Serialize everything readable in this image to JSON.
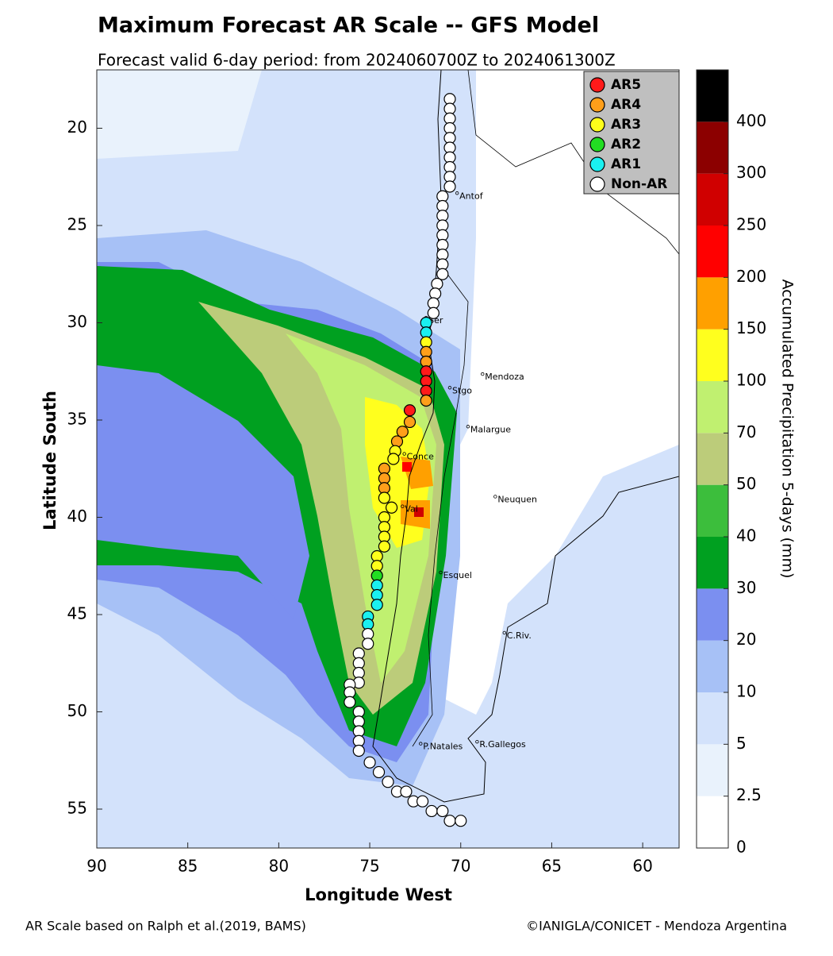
{
  "title": "Maximum Forecast AR Scale -- GFS Model",
  "subtitle": "Forecast valid 6-day period: from 2024060700Z to 2024061300Z",
  "map": {
    "xlabel": "Longitude West",
    "ylabel": "Latitude South",
    "xlim": [
      90,
      58
    ],
    "ylim": [
      17,
      57
    ],
    "xticks": [
      90,
      85,
      80,
      75,
      70,
      65,
      60
    ],
    "yticks": [
      20,
      25,
      30,
      35,
      40,
      45,
      50,
      55
    ],
    "cities": [
      {
        "label": "Antof",
        "lon": 70.2,
        "lat": 23.5
      },
      {
        "label": "Ser",
        "lon": 71.9,
        "lat": 29.9
      },
      {
        "label": "Mendoza",
        "lon": 68.8,
        "lat": 32.8
      },
      {
        "label": "Stgo",
        "lon": 70.6,
        "lat": 33.5
      },
      {
        "label": "Malargue",
        "lon": 69.6,
        "lat": 35.5
      },
      {
        "label": "Conce",
        "lon": 73.1,
        "lat": 36.9
      },
      {
        "label": "Neuquen",
        "lon": 68.1,
        "lat": 39.1
      },
      {
        "label": "Val",
        "lon": 73.2,
        "lat": 39.6
      },
      {
        "label": "Esquel",
        "lon": 71.1,
        "lat": 43.0
      },
      {
        "label": "C.Riv.",
        "lon": 67.6,
        "lat": 46.1
      },
      {
        "label": "P.Natales",
        "lon": 72.2,
        "lat": 51.8
      },
      {
        "label": "R.Gallegos",
        "lon": 69.1,
        "lat": 51.7
      }
    ],
    "legend": [
      {
        "label": "AR5",
        "color": "#ff1a1a"
      },
      {
        "label": "AR4",
        "color": "#ff9f1a"
      },
      {
        "label": "AR3",
        "color": "#ffff1a"
      },
      {
        "label": "AR2",
        "color": "#22dd22"
      },
      {
        "label": "AR1",
        "color": "#1af0f0"
      },
      {
        "label": "Non-AR",
        "color": "#ffffff"
      }
    ],
    "track": [
      {
        "lon": 70.6,
        "lat": 18.5,
        "cat": "Non-AR"
      },
      {
        "lon": 70.6,
        "lat": 19.0,
        "cat": "Non-AR"
      },
      {
        "lon": 70.6,
        "lat": 19.5,
        "cat": "Non-AR"
      },
      {
        "lon": 70.6,
        "lat": 20.0,
        "cat": "Non-AR"
      },
      {
        "lon": 70.6,
        "lat": 20.5,
        "cat": "Non-AR"
      },
      {
        "lon": 70.6,
        "lat": 21.0,
        "cat": "Non-AR"
      },
      {
        "lon": 70.6,
        "lat": 21.5,
        "cat": "Non-AR"
      },
      {
        "lon": 70.6,
        "lat": 22.0,
        "cat": "Non-AR"
      },
      {
        "lon": 70.6,
        "lat": 22.5,
        "cat": "Non-AR"
      },
      {
        "lon": 70.6,
        "lat": 23.0,
        "cat": "Non-AR"
      },
      {
        "lon": 71.0,
        "lat": 23.5,
        "cat": "Non-AR"
      },
      {
        "lon": 71.0,
        "lat": 24.0,
        "cat": "Non-AR"
      },
      {
        "lon": 71.0,
        "lat": 24.5,
        "cat": "Non-AR"
      },
      {
        "lon": 71.0,
        "lat": 25.0,
        "cat": "Non-AR"
      },
      {
        "lon": 71.0,
        "lat": 25.5,
        "cat": "Non-AR"
      },
      {
        "lon": 71.0,
        "lat": 26.0,
        "cat": "Non-AR"
      },
      {
        "lon": 71.0,
        "lat": 26.5,
        "cat": "Non-AR"
      },
      {
        "lon": 71.0,
        "lat": 27.0,
        "cat": "Non-AR"
      },
      {
        "lon": 71.0,
        "lat": 27.5,
        "cat": "Non-AR"
      },
      {
        "lon": 71.3,
        "lat": 28.0,
        "cat": "Non-AR"
      },
      {
        "lon": 71.4,
        "lat": 28.5,
        "cat": "Non-AR"
      },
      {
        "lon": 71.5,
        "lat": 29.0,
        "cat": "Non-AR"
      },
      {
        "lon": 71.5,
        "lat": 29.5,
        "cat": "Non-AR"
      },
      {
        "lon": 71.9,
        "lat": 30.0,
        "cat": "AR1"
      },
      {
        "lon": 71.9,
        "lat": 30.5,
        "cat": "AR1"
      },
      {
        "lon": 71.9,
        "lat": 31.0,
        "cat": "AR3"
      },
      {
        "lon": 71.9,
        "lat": 31.5,
        "cat": "AR4"
      },
      {
        "lon": 71.9,
        "lat": 32.0,
        "cat": "AR4"
      },
      {
        "lon": 71.9,
        "lat": 32.5,
        "cat": "AR5"
      },
      {
        "lon": 71.9,
        "lat": 33.0,
        "cat": "AR5"
      },
      {
        "lon": 71.9,
        "lat": 33.5,
        "cat": "AR5"
      },
      {
        "lon": 71.9,
        "lat": 34.0,
        "cat": "AR4"
      },
      {
        "lon": 72.8,
        "lat": 34.5,
        "cat": "AR5"
      },
      {
        "lon": 72.8,
        "lat": 35.1,
        "cat": "AR4"
      },
      {
        "lon": 73.2,
        "lat": 35.6,
        "cat": "AR4"
      },
      {
        "lon": 73.5,
        "lat": 36.1,
        "cat": "AR4"
      },
      {
        "lon": 73.6,
        "lat": 36.6,
        "cat": "AR3"
      },
      {
        "lon": 73.7,
        "lat": 37.0,
        "cat": "AR3"
      },
      {
        "lon": 74.2,
        "lat": 37.5,
        "cat": "AR4"
      },
      {
        "lon": 74.2,
        "lat": 38.0,
        "cat": "AR4"
      },
      {
        "lon": 74.2,
        "lat": 38.5,
        "cat": "AR4"
      },
      {
        "lon": 74.2,
        "lat": 39.0,
        "cat": "AR3"
      },
      {
        "lon": 73.8,
        "lat": 39.5,
        "cat": "AR3"
      },
      {
        "lon": 74.2,
        "lat": 40.0,
        "cat": "AR3"
      },
      {
        "lon": 74.2,
        "lat": 40.5,
        "cat": "AR3"
      },
      {
        "lon": 74.2,
        "lat": 41.0,
        "cat": "AR3"
      },
      {
        "lon": 74.2,
        "lat": 41.5,
        "cat": "AR3"
      },
      {
        "lon": 74.6,
        "lat": 42.0,
        "cat": "AR3"
      },
      {
        "lon": 74.6,
        "lat": 42.5,
        "cat": "AR3"
      },
      {
        "lon": 74.6,
        "lat": 43.0,
        "cat": "AR2"
      },
      {
        "lon": 74.6,
        "lat": 43.5,
        "cat": "AR1"
      },
      {
        "lon": 74.6,
        "lat": 44.0,
        "cat": "AR1"
      },
      {
        "lon": 74.6,
        "lat": 44.5,
        "cat": "AR1"
      },
      {
        "lon": 75.1,
        "lat": 45.1,
        "cat": "AR1"
      },
      {
        "lon": 75.1,
        "lat": 45.5,
        "cat": "AR1"
      },
      {
        "lon": 75.1,
        "lat": 46.0,
        "cat": "Non-AR"
      },
      {
        "lon": 75.1,
        "lat": 46.5,
        "cat": "Non-AR"
      },
      {
        "lon": 75.6,
        "lat": 47.0,
        "cat": "Non-AR"
      },
      {
        "lon": 75.6,
        "lat": 47.5,
        "cat": "Non-AR"
      },
      {
        "lon": 75.6,
        "lat": 48.0,
        "cat": "Non-AR"
      },
      {
        "lon": 75.6,
        "lat": 48.5,
        "cat": "Non-AR"
      },
      {
        "lon": 76.1,
        "lat": 48.6,
        "cat": "Non-AR"
      },
      {
        "lon": 76.1,
        "lat": 49.0,
        "cat": "Non-AR"
      },
      {
        "lon": 76.1,
        "lat": 49.5,
        "cat": "Non-AR"
      },
      {
        "lon": 75.6,
        "lat": 50.0,
        "cat": "Non-AR"
      },
      {
        "lon": 75.6,
        "lat": 50.5,
        "cat": "Non-AR"
      },
      {
        "lon": 75.6,
        "lat": 51.0,
        "cat": "Non-AR"
      },
      {
        "lon": 75.6,
        "lat": 51.5,
        "cat": "Non-AR"
      },
      {
        "lon": 75.6,
        "lat": 52.0,
        "cat": "Non-AR"
      },
      {
        "lon": 75.0,
        "lat": 52.6,
        "cat": "Non-AR"
      },
      {
        "lon": 74.5,
        "lat": 53.1,
        "cat": "Non-AR"
      },
      {
        "lon": 74.0,
        "lat": 53.6,
        "cat": "Non-AR"
      },
      {
        "lon": 73.5,
        "lat": 54.1,
        "cat": "Non-AR"
      },
      {
        "lon": 73.0,
        "lat": 54.1,
        "cat": "Non-AR"
      },
      {
        "lon": 72.6,
        "lat": 54.6,
        "cat": "Non-AR"
      },
      {
        "lon": 72.1,
        "lat": 54.6,
        "cat": "Non-AR"
      },
      {
        "lon": 71.6,
        "lat": 55.1,
        "cat": "Non-AR"
      },
      {
        "lon": 71.0,
        "lat": 55.1,
        "cat": "Non-AR"
      },
      {
        "lon": 70.6,
        "lat": 55.6,
        "cat": "Non-AR"
      },
      {
        "lon": 70.0,
        "lat": 55.6,
        "cat": "Non-AR"
      }
    ]
  },
  "colorbar": {
    "label": "Accumulated Precipitation 5-days (mm)",
    "colors": [
      "#ffffff",
      "#e9f2fc",
      "#d3e2fb",
      "#a7c1f6",
      "#7b8ff0",
      "#00a020",
      "#3cbe3c",
      "#bccc7a",
      "#c0f070",
      "#ffff1e",
      "#ffa000",
      "#ff0000",
      "#d00000",
      "#8c0000",
      "#000000"
    ],
    "ticks": [
      0,
      2.5,
      5,
      10,
      20,
      30,
      40,
      50,
      70,
      100,
      150,
      200,
      250,
      300,
      400
    ]
  },
  "footer_left": "AR Scale based on Ralph et al.(2019, BAMS)",
  "footer_right": "©IANIGLA/CONICET - Mendoza Argentina"
}
